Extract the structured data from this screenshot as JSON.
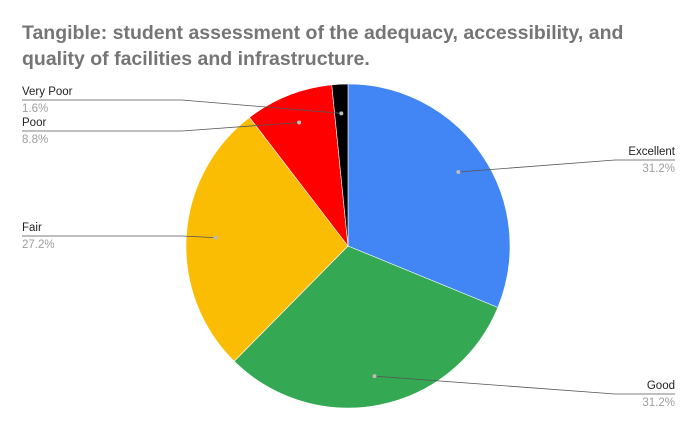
{
  "chart_data": {
    "type": "pie",
    "title": "Tangible: student assessment of the adequacy, accessibility, and quality of facilities and infrastructure.",
    "slices": [
      {
        "label": "Excellent",
        "value": 31.2,
        "display": "31.2%",
        "color": "#4285f4"
      },
      {
        "label": "Good",
        "value": 31.2,
        "display": "31.2%",
        "color": "#34a853"
      },
      {
        "label": "Fair",
        "value": 27.2,
        "display": "27.2%",
        "color": "#fbbc04"
      },
      {
        "label": "Poor",
        "value": 8.8,
        "display": "8.8%",
        "color": "#ff0000"
      },
      {
        "label": "Very Poor",
        "value": 1.6,
        "display": "1.6%",
        "color": "#000000"
      }
    ],
    "start_angle": "12 o'clock",
    "direction": "clockwise",
    "legend": "none",
    "data_labels": "outside with leader lines"
  }
}
